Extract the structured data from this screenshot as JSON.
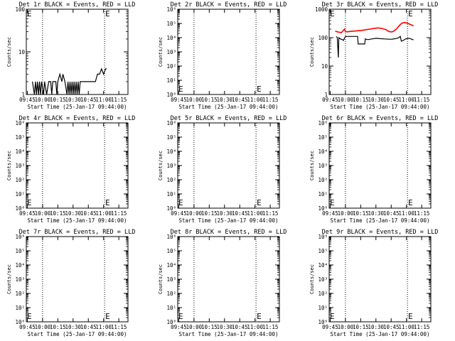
{
  "chart_data": [
    {
      "type": "line",
      "title": "Det 1r BLACK = Events, RED = LLD",
      "xlabel": "Start Time (25-Jan-17 09:44:00)",
      "ylabel": "Counts/sec",
      "yscale": "log",
      "x_tick_labels": [
        "09:45",
        "10:00",
        "10:15",
        "10:30",
        "10:45",
        "11:00",
        "11:15"
      ],
      "x_ticks_minutes": [
        1,
        16,
        31,
        46,
        61,
        76,
        91
      ],
      "xlim_minutes": [
        0,
        100
      ],
      "ylim": [
        1,
        100
      ],
      "y_tick_labels": [
        "1",
        "10",
        "100"
      ],
      "y_tick_values": [
        1,
        10,
        100
      ],
      "event_marker_minutes": [
        16,
        77
      ],
      "marker_label": "E",
      "series": [
        {
          "name": "BLACK = Events",
          "color": "#000000",
          "points": [
            [
              6,
              2
            ],
            [
              8,
              1
            ],
            [
              9,
              2
            ],
            [
              10,
              1
            ],
            [
              11,
              2
            ],
            [
              12,
              1
            ],
            [
              13,
              2
            ],
            [
              14,
              1
            ],
            [
              15,
              2
            ],
            [
              17,
              1
            ],
            [
              18,
              2
            ],
            [
              20,
              1
            ],
            [
              22,
              2
            ],
            [
              24,
              2
            ],
            [
              25,
              1
            ],
            [
              26,
              2
            ],
            [
              29,
              2
            ],
            [
              30,
              1
            ],
            [
              31,
              2
            ],
            [
              33,
              3
            ],
            [
              35,
              2
            ],
            [
              36,
              3
            ],
            [
              38,
              2
            ],
            [
              40,
              1
            ],
            [
              41,
              2
            ],
            [
              42,
              1
            ],
            [
              43,
              2
            ],
            [
              44,
              1
            ],
            [
              45,
              2
            ],
            [
              46,
              1
            ],
            [
              47,
              2
            ],
            [
              48,
              1
            ],
            [
              49,
              2
            ],
            [
              50,
              1
            ],
            [
              51,
              2
            ],
            [
              52,
              1
            ],
            [
              53,
              2
            ],
            [
              55,
              2
            ],
            [
              58,
              2
            ],
            [
              60,
              2
            ],
            [
              62,
              2
            ],
            [
              64,
              2
            ],
            [
              66,
              2
            ],
            [
              68,
              2
            ],
            [
              70,
              3
            ],
            [
              72,
              3
            ],
            [
              74,
              4
            ],
            [
              76,
              3
            ],
            [
              78,
              4
            ],
            [
              79,
              4
            ]
          ]
        },
        {
          "name": "RED = LLD",
          "color": "#ff0000",
          "points": []
        }
      ]
    },
    {
      "type": "line",
      "title": "Det 2r BLACK = Events, RED = LLD",
      "xlabel": "Start Time (25-Jan-17 09:44:00)",
      "ylabel": "Counts/sec",
      "yscale": "log",
      "x_tick_labels": [
        "09:45",
        "10:00",
        "10:15",
        "10:30",
        "10:45",
        "11:00",
        "11:15"
      ],
      "x_ticks_minutes": [
        1,
        16,
        31,
        46,
        61,
        76,
        91
      ],
      "xlim_minutes": [
        0,
        100
      ],
      "ylim": [
        1,
        1000000
      ],
      "y_tick_labels": [
        "10⁰",
        "10¹",
        "10²",
        "10³",
        "10⁴",
        "10⁵",
        "10⁶"
      ],
      "y_tick_values": [
        1,
        10,
        100,
        1000,
        10000,
        100000,
        1000000
      ],
      "event_marker_minutes": [
        16,
        77
      ],
      "marker_label": "E",
      "series": [
        {
          "name": "BLACK = Events",
          "color": "#000000",
          "points": []
        },
        {
          "name": "RED = LLD",
          "color": "#ff0000",
          "points": []
        }
      ]
    },
    {
      "type": "line",
      "title": "Det 3r BLACK = Events, RED = LLD",
      "xlabel": "Start Time (25-Jan-17 09:44:00)",
      "ylabel": "Counts/sec",
      "yscale": "log",
      "x_tick_labels": [
        "09:45",
        "10:00",
        "10:15",
        "10:30",
        "10:45",
        "11:00",
        "11:15"
      ],
      "x_ticks_minutes": [
        1,
        16,
        31,
        46,
        61,
        76,
        91
      ],
      "xlim_minutes": [
        0,
        100
      ],
      "ylim": [
        1,
        1000
      ],
      "y_tick_labels": [
        "1",
        "10",
        "100",
        "1000"
      ],
      "y_tick_values": [
        1,
        10,
        100,
        1000
      ],
      "event_marker_minutes": [
        16,
        77
      ],
      "marker_label": "E",
      "series": [
        {
          "name": "BLACK = Events",
          "color": "#000000",
          "points": [
            [
              7,
              110
            ],
            [
              8,
              100
            ],
            [
              9,
              20
            ],
            [
              9.5,
              100
            ],
            [
              11,
              90
            ],
            [
              13,
              85
            ],
            [
              14,
              80
            ],
            [
              16,
              110
            ],
            [
              18,
              110
            ],
            [
              20,
              110
            ],
            [
              22,
              110
            ],
            [
              24,
              110
            ],
            [
              26,
              110
            ],
            [
              28,
              110
            ],
            [
              28.5,
              60
            ],
            [
              32,
              60
            ],
            [
              35,
              60
            ],
            [
              35.5,
              90
            ],
            [
              38,
              85
            ],
            [
              42,
              90
            ],
            [
              46,
              95
            ],
            [
              50,
              92
            ],
            [
              55,
              90
            ],
            [
              58,
              88
            ],
            [
              62,
              88
            ],
            [
              65,
              92
            ],
            [
              68,
              98
            ],
            [
              70,
              110
            ],
            [
              71,
              75
            ],
            [
              73,
              80
            ],
            [
              75,
              90
            ],
            [
              78,
              95
            ],
            [
              80,
              92
            ],
            [
              82,
              85
            ],
            [
              83,
              85
            ]
          ]
        },
        {
          "name": "RED = LLD",
          "color": "#ff0000",
          "points": [
            [
              6,
              170
            ],
            [
              8,
              160
            ],
            [
              10,
              155
            ],
            [
              12,
              150
            ],
            [
              14,
              180
            ],
            [
              15,
              200
            ],
            [
              16,
              165
            ],
            [
              18,
              160
            ],
            [
              20,
              165
            ],
            [
              24,
              170
            ],
            [
              28,
              175
            ],
            [
              32,
              180
            ],
            [
              36,
              190
            ],
            [
              40,
              200
            ],
            [
              44,
              210
            ],
            [
              48,
              220
            ],
            [
              52,
              210
            ],
            [
              56,
              190
            ],
            [
              58,
              170
            ],
            [
              60,
              160
            ],
            [
              62,
              160
            ],
            [
              64,
              175
            ],
            [
              66,
              200
            ],
            [
              68,
              240
            ],
            [
              70,
              290
            ],
            [
              72,
              330
            ],
            [
              74,
              340
            ],
            [
              76,
              330
            ],
            [
              78,
              310
            ],
            [
              80,
              290
            ],
            [
              82,
              270
            ],
            [
              83,
              260
            ]
          ]
        }
      ]
    },
    {
      "type": "line",
      "title": "Det 4r BLACK = Events, RED = LLD",
      "xlabel": "Start Time (25-Jan-17 09:44:00)",
      "ylabel": "Counts/sec",
      "yscale": "log",
      "x_tick_labels": [
        "09:45",
        "10:00",
        "10:15",
        "10:30",
        "10:45",
        "11:00",
        "11:15"
      ],
      "x_ticks_minutes": [
        1,
        16,
        31,
        46,
        61,
        76,
        91
      ],
      "xlim_minutes": [
        0,
        100
      ],
      "ylim": [
        1,
        1000000
      ],
      "y_tick_labels": [
        "10⁰",
        "10¹",
        "10²",
        "10³",
        "10⁴",
        "10⁵",
        "10⁶"
      ],
      "y_tick_values": [
        1,
        10,
        100,
        1000,
        10000,
        100000,
        1000000
      ],
      "event_marker_minutes": [
        16,
        77
      ],
      "marker_label": "E",
      "series": [
        {
          "name": "BLACK = Events",
          "color": "#000000",
          "points": []
        },
        {
          "name": "RED = LLD",
          "color": "#ff0000",
          "points": []
        }
      ]
    },
    {
      "type": "line",
      "title": "Det 5r BLACK = Events, RED = LLD",
      "xlabel": "Start Time (25-Jan-17 09:44:00)",
      "ylabel": "Counts/sec",
      "yscale": "log",
      "x_tick_labels": [
        "09:45",
        "10:00",
        "10:15",
        "10:30",
        "10:45",
        "11:00",
        "11:15"
      ],
      "x_ticks_minutes": [
        1,
        16,
        31,
        46,
        61,
        76,
        91
      ],
      "xlim_minutes": [
        0,
        100
      ],
      "ylim": [
        1,
        1000000
      ],
      "y_tick_labels": [
        "10⁰",
        "10¹",
        "10²",
        "10³",
        "10⁴",
        "10⁵",
        "10⁶"
      ],
      "y_tick_values": [
        1,
        10,
        100,
        1000,
        10000,
        100000,
        1000000
      ],
      "event_marker_minutes": [
        16,
        77
      ],
      "marker_label": "E",
      "series": [
        {
          "name": "BLACK = Events",
          "color": "#000000",
          "points": []
        },
        {
          "name": "RED = LLD",
          "color": "#ff0000",
          "points": []
        }
      ]
    },
    {
      "type": "line",
      "title": "Det 6r BLACK = Events, RED = LLD",
      "xlabel": "Start Time (25-Jan-17 09:44:00)",
      "ylabel": "Counts/sec",
      "yscale": "log",
      "x_tick_labels": [
        "09:45",
        "10:00",
        "10:15",
        "10:30",
        "10:45",
        "11:00",
        "11:15"
      ],
      "x_ticks_minutes": [
        1,
        16,
        31,
        46,
        61,
        76,
        91
      ],
      "xlim_minutes": [
        0,
        100
      ],
      "ylim": [
        1,
        1000000
      ],
      "y_tick_labels": [
        "10⁰",
        "10¹",
        "10²",
        "10³",
        "10⁴",
        "10⁵",
        "10⁶"
      ],
      "y_tick_values": [
        1,
        10,
        100,
        1000,
        10000,
        100000,
        1000000
      ],
      "event_marker_minutes": [
        16,
        77
      ],
      "marker_label": "E",
      "series": [
        {
          "name": "BLACK = Events",
          "color": "#000000",
          "points": []
        },
        {
          "name": "RED = LLD",
          "color": "#ff0000",
          "points": []
        }
      ]
    },
    {
      "type": "line",
      "title": "Det 7r BLACK = Events, RED = LLD",
      "xlabel": "Start Time (25-Jan-17 09:44:00)",
      "ylabel": "Counts/sec",
      "yscale": "log",
      "x_tick_labels": [
        "09:45",
        "10:00",
        "10:15",
        "10:30",
        "10:45",
        "11:00",
        "11:15"
      ],
      "x_ticks_minutes": [
        1,
        16,
        31,
        46,
        61,
        76,
        91
      ],
      "xlim_minutes": [
        0,
        100
      ],
      "ylim": [
        1,
        1000000
      ],
      "y_tick_labels": [
        "10⁰",
        "10¹",
        "10²",
        "10³",
        "10⁴",
        "10⁵",
        "10⁶"
      ],
      "y_tick_values": [
        1,
        10,
        100,
        1000,
        10000,
        100000,
        1000000
      ],
      "event_marker_minutes": [
        16,
        77
      ],
      "marker_label": "E",
      "series": [
        {
          "name": "BLACK = Events",
          "color": "#000000",
          "points": []
        },
        {
          "name": "RED = LLD",
          "color": "#ff0000",
          "points": []
        }
      ]
    },
    {
      "type": "line",
      "title": "Det 8r BLACK = Events, RED = LLD",
      "xlabel": "Start Time (25-Jan-17 09:44:00)",
      "ylabel": "Counts/sec",
      "yscale": "log",
      "x_tick_labels": [
        "09:45",
        "10:00",
        "10:15",
        "10:30",
        "10:45",
        "11:00",
        "11:15"
      ],
      "x_ticks_minutes": [
        1,
        16,
        31,
        46,
        61,
        76,
        91
      ],
      "xlim_minutes": [
        0,
        100
      ],
      "ylim": [
        1,
        1000000
      ],
      "y_tick_labels": [
        "10⁰",
        "10¹",
        "10²",
        "10³",
        "10⁴",
        "10⁵",
        "10⁶"
      ],
      "y_tick_values": [
        1,
        10,
        100,
        1000,
        10000,
        100000,
        1000000
      ],
      "event_marker_minutes": [
        16,
        77
      ],
      "marker_label": "E",
      "series": [
        {
          "name": "BLACK = Events",
          "color": "#000000",
          "points": []
        },
        {
          "name": "RED = LLD",
          "color": "#ff0000",
          "points": []
        }
      ]
    },
    {
      "type": "line",
      "title": "Det 9r BLACK = Events, RED = LLD",
      "xlabel": "Start Time (25-Jan-17 09:44:00)",
      "ylabel": "Counts/sec",
      "yscale": "log",
      "x_tick_labels": [
        "09:45",
        "10:00",
        "10:15",
        "10:30",
        "10:45",
        "11:00",
        "11:15"
      ],
      "x_ticks_minutes": [
        1,
        16,
        31,
        46,
        61,
        76,
        91
      ],
      "xlim_minutes": [
        0,
        100
      ],
      "ylim": [
        1,
        1000000
      ],
      "y_tick_labels": [
        "10⁰",
        "10¹",
        "10²",
        "10³",
        "10⁴",
        "10⁵",
        "10⁶"
      ],
      "y_tick_values": [
        1,
        10,
        100,
        1000,
        10000,
        100000,
        1000000
      ],
      "event_marker_minutes": [
        16,
        77
      ],
      "marker_label": "E",
      "series": [
        {
          "name": "BLACK = Events",
          "color": "#000000",
          "points": []
        },
        {
          "name": "RED = LLD",
          "color": "#ff0000",
          "points": []
        }
      ]
    }
  ]
}
